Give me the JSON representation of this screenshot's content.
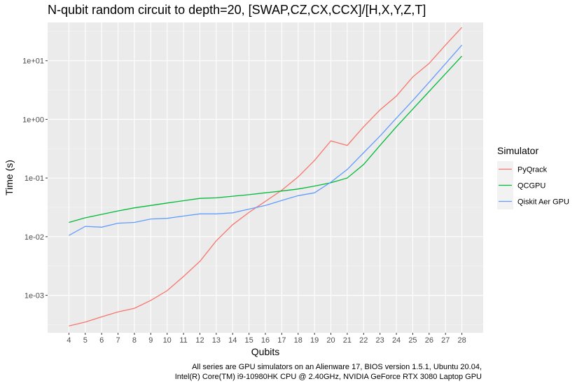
{
  "chart_data": {
    "type": "line",
    "title": "N-qubit random circuit to depth=20, [SWAP,CZ,CX,CCX]/[H,X,Y,Z,T]",
    "xlabel": "Qubits",
    "ylabel": "Time (s)",
    "y_scale": "log10",
    "ylim": [
      0.00023,
      45
    ],
    "x": [
      4,
      5,
      6,
      7,
      8,
      9,
      10,
      11,
      12,
      13,
      14,
      15,
      16,
      17,
      18,
      19,
      20,
      21,
      22,
      23,
      24,
      25,
      26,
      27,
      28
    ],
    "x_tick_labels": [
      "4",
      "5",
      "6",
      "7",
      "8",
      "9",
      "10",
      "11",
      "12",
      "13",
      "14",
      "15",
      "16",
      "17",
      "18",
      "19",
      "20",
      "21",
      "22",
      "23",
      "24",
      "25",
      "26",
      "27",
      "28"
    ],
    "y_ticks": [
      0.001,
      0.01,
      0.1,
      1,
      10
    ],
    "y_tick_labels": [
      "1e-03",
      "1e-02",
      "1e-01",
      "1e+00",
      "1e+01"
    ],
    "grid": true,
    "legend": {
      "title": "Simulator",
      "position": "right"
    },
    "series": [
      {
        "name": "PyQrack",
        "color": "#F8766D",
        "values": [
          0.0003,
          0.00035,
          0.00043,
          0.00052,
          0.0006,
          0.00082,
          0.0012,
          0.0021,
          0.0038,
          0.0085,
          0.016,
          0.026,
          0.04,
          0.062,
          0.105,
          0.2,
          0.43,
          0.36,
          0.75,
          1.45,
          2.5,
          5.3,
          9.0,
          18.5,
          37
        ]
      },
      {
        "name": "QCGPU",
        "color": "#00BA38",
        "values": [
          0.0175,
          0.021,
          0.024,
          0.0275,
          0.031,
          0.034,
          0.0375,
          0.041,
          0.045,
          0.046,
          0.049,
          0.052,
          0.056,
          0.06,
          0.065,
          0.073,
          0.083,
          0.1,
          0.17,
          0.36,
          0.75,
          1.5,
          3.0,
          6.0,
          12
        ]
      },
      {
        "name": "Qiskit Aer GPU",
        "color": "#619CFF",
        "values": [
          0.0105,
          0.015,
          0.0145,
          0.017,
          0.0175,
          0.02,
          0.0205,
          0.0225,
          0.0245,
          0.0245,
          0.0255,
          0.0295,
          0.034,
          0.0415,
          0.05,
          0.056,
          0.085,
          0.14,
          0.27,
          0.52,
          1.05,
          2.1,
          4.3,
          8.9,
          18.5
        ]
      }
    ]
  },
  "caption": [
    "All series are GPU simulators on an Alienware 17, BIOS version 1.5.1, Ubuntu 20.04,",
    "Intel(R) Core(TM) i9-10980HK CPU @ 2.40GHz, NVIDIA GeForce RTX 3080 Laptop GPU"
  ]
}
